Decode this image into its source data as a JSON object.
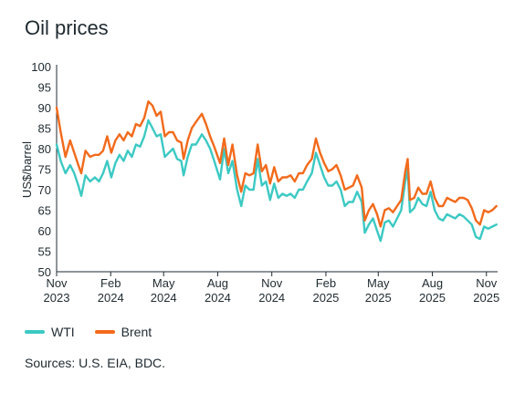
{
  "title": "Oil prices",
  "source": "Sources: U.S. EIA, BDC.",
  "colors": {
    "wti": "#3cc9c3",
    "brent": "#f26a1b",
    "axis": "#1f2a30"
  },
  "chart_data": {
    "type": "line",
    "title": "Oil prices",
    "ylabel": "US$/barrel",
    "ylim": [
      50,
      100
    ],
    "yticks": [
      50,
      55,
      60,
      65,
      70,
      75,
      80,
      85,
      90,
      95,
      100
    ],
    "xlim": [
      "2023-11-01",
      "2025-11-20"
    ],
    "xticks": [
      {
        "x": "2023-11-01",
        "label1": "Nov",
        "label2": "2023"
      },
      {
        "x": "2024-02-01",
        "label1": "Feb",
        "label2": "2024"
      },
      {
        "x": "2024-05-01",
        "label1": "May",
        "label2": "2024"
      },
      {
        "x": "2024-08-01",
        "label1": "Aug",
        "label2": "2024"
      },
      {
        "x": "2024-11-01",
        "label1": "Nov",
        "label2": "2024"
      },
      {
        "x": "2025-02-01",
        "label1": "Feb",
        "label2": "2025"
      },
      {
        "x": "2025-05-01",
        "label1": "May",
        "label2": "2025"
      },
      {
        "x": "2025-08-01",
        "label1": "Aug",
        "label2": "2025"
      },
      {
        "x": "2025-11-01",
        "label1": "Nov",
        "label2": "2025"
      }
    ],
    "legend": "bottom-left",
    "series": [
      {
        "name": "WTI",
        "color": "#3cc9c3",
        "points": [
          [
            "2023-11-01",
            81
          ],
          [
            "2023-11-08",
            77
          ],
          [
            "2023-11-16",
            74
          ],
          [
            "2023-11-24",
            76
          ],
          [
            "2023-12-01",
            74
          ],
          [
            "2023-12-08",
            71
          ],
          [
            "2023-12-13",
            68.5
          ],
          [
            "2023-12-20",
            73.5
          ],
          [
            "2023-12-28",
            72
          ],
          [
            "2024-01-05",
            73
          ],
          [
            "2024-01-12",
            72
          ],
          [
            "2024-01-19",
            74
          ],
          [
            "2024-01-26",
            77
          ],
          [
            "2024-02-02",
            73
          ],
          [
            "2024-02-09",
            76.5
          ],
          [
            "2024-02-16",
            78.5
          ],
          [
            "2024-02-23",
            77
          ],
          [
            "2024-03-01",
            79.5
          ],
          [
            "2024-03-08",
            78
          ],
          [
            "2024-03-15",
            81
          ],
          [
            "2024-03-22",
            80.5
          ],
          [
            "2024-03-29",
            83
          ],
          [
            "2024-04-05",
            86.9
          ],
          [
            "2024-04-12",
            85
          ],
          [
            "2024-04-19",
            83
          ],
          [
            "2024-04-26",
            83.5
          ],
          [
            "2024-05-03",
            78
          ],
          [
            "2024-05-10",
            79
          ],
          [
            "2024-05-17",
            80
          ],
          [
            "2024-05-24",
            77.5
          ],
          [
            "2024-05-31",
            77
          ],
          [
            "2024-06-04",
            73.5
          ],
          [
            "2024-06-11",
            78
          ],
          [
            "2024-06-18",
            81
          ],
          [
            "2024-06-25",
            81
          ],
          [
            "2024-07-05",
            83.5
          ],
          [
            "2024-07-12",
            82
          ],
          [
            "2024-07-19",
            80
          ],
          [
            "2024-07-26",
            77
          ],
          [
            "2024-08-05",
            72.5
          ],
          [
            "2024-08-12",
            80
          ],
          [
            "2024-08-19",
            74
          ],
          [
            "2024-08-26",
            77
          ],
          [
            "2024-09-03",
            70
          ],
          [
            "2024-09-10",
            66
          ],
          [
            "2024-09-17",
            71
          ],
          [
            "2024-09-24",
            70
          ],
          [
            "2024-10-01",
            70
          ],
          [
            "2024-10-08",
            77.5
          ],
          [
            "2024-10-15",
            71
          ],
          [
            "2024-10-22",
            72
          ],
          [
            "2024-10-29",
            67.5
          ],
          [
            "2024-11-05",
            71.5
          ],
          [
            "2024-11-12",
            68
          ],
          [
            "2024-11-19",
            69
          ],
          [
            "2024-11-26",
            68.5
          ],
          [
            "2024-12-03",
            69
          ],
          [
            "2024-12-10",
            68
          ],
          [
            "2024-12-17",
            70
          ],
          [
            "2024-12-24",
            70
          ],
          [
            "2024-12-31",
            72
          ],
          [
            "2025-01-08",
            74
          ],
          [
            "2025-01-15",
            79
          ],
          [
            "2025-01-22",
            76
          ],
          [
            "2025-01-29",
            73
          ],
          [
            "2025-02-05",
            71
          ],
          [
            "2025-02-12",
            71
          ],
          [
            "2025-02-19",
            72
          ],
          [
            "2025-02-26",
            70
          ],
          [
            "2025-03-05",
            66
          ],
          [
            "2025-03-12",
            67
          ],
          [
            "2025-03-19",
            67
          ],
          [
            "2025-03-26",
            69.5
          ],
          [
            "2025-04-03",
            67
          ],
          [
            "2025-04-08",
            59.5
          ],
          [
            "2025-04-15",
            61.5
          ],
          [
            "2025-04-22",
            63
          ],
          [
            "2025-04-29",
            60
          ],
          [
            "2025-05-05",
            57.5
          ],
          [
            "2025-05-12",
            62
          ],
          [
            "2025-05-19",
            62.5
          ],
          [
            "2025-05-26",
            61
          ],
          [
            "2025-06-02",
            63
          ],
          [
            "2025-06-09",
            65
          ],
          [
            "2025-06-16",
            72
          ],
          [
            "2025-06-20",
            75
          ],
          [
            "2025-06-24",
            64.5
          ],
          [
            "2025-07-01",
            65.5
          ],
          [
            "2025-07-08",
            68
          ],
          [
            "2025-07-15",
            66.5
          ],
          [
            "2025-07-22",
            66
          ],
          [
            "2025-07-29",
            69.5
          ],
          [
            "2025-08-05",
            65
          ],
          [
            "2025-08-12",
            63
          ],
          [
            "2025-08-19",
            62.5
          ],
          [
            "2025-08-26",
            64
          ],
          [
            "2025-09-02",
            63.5
          ],
          [
            "2025-09-09",
            63
          ],
          [
            "2025-09-16",
            64
          ],
          [
            "2025-09-23",
            63.5
          ],
          [
            "2025-09-30",
            62.5
          ],
          [
            "2025-10-07",
            61.5
          ],
          [
            "2025-10-14",
            58.5
          ],
          [
            "2025-10-21",
            58
          ],
          [
            "2025-10-28",
            61
          ],
          [
            "2025-11-04",
            60.5
          ],
          [
            "2025-11-11",
            61
          ],
          [
            "2025-11-18",
            61.5
          ]
        ]
      },
      {
        "name": "Brent",
        "color": "#f26a1b",
        "points": [
          [
            "2023-11-01",
            90
          ],
          [
            "2023-11-08",
            84
          ],
          [
            "2023-11-16",
            78
          ],
          [
            "2023-11-24",
            82
          ],
          [
            "2023-12-01",
            79
          ],
          [
            "2023-12-08",
            76
          ],
          [
            "2023-12-13",
            74
          ],
          [
            "2023-12-20",
            79.5
          ],
          [
            "2023-12-28",
            78
          ],
          [
            "2024-01-05",
            78.5
          ],
          [
            "2024-01-12",
            78.5
          ],
          [
            "2024-01-19",
            79.5
          ],
          [
            "2024-01-26",
            83
          ],
          [
            "2024-02-02",
            79
          ],
          [
            "2024-02-09",
            82
          ],
          [
            "2024-02-16",
            83.5
          ],
          [
            "2024-02-23",
            82
          ],
          [
            "2024-03-01",
            84
          ],
          [
            "2024-03-08",
            83
          ],
          [
            "2024-03-15",
            86
          ],
          [
            "2024-03-22",
            85.5
          ],
          [
            "2024-03-29",
            87.5
          ],
          [
            "2024-04-05",
            91.5
          ],
          [
            "2024-04-12",
            90.5
          ],
          [
            "2024-04-19",
            88
          ],
          [
            "2024-04-26",
            89
          ],
          [
            "2024-05-03",
            83
          ],
          [
            "2024-05-10",
            84
          ],
          [
            "2024-05-17",
            84
          ],
          [
            "2024-05-24",
            82
          ],
          [
            "2024-05-31",
            81.5
          ],
          [
            "2024-06-04",
            77.5
          ],
          [
            "2024-06-11",
            82
          ],
          [
            "2024-06-18",
            85
          ],
          [
            "2024-06-25",
            86.5
          ],
          [
            "2024-07-05",
            88.5
          ],
          [
            "2024-07-12",
            86
          ],
          [
            "2024-07-19",
            83
          ],
          [
            "2024-07-26",
            80.5
          ],
          [
            "2024-08-05",
            76.5
          ],
          [
            "2024-08-12",
            82.5
          ],
          [
            "2024-08-19",
            76
          ],
          [
            "2024-08-26",
            81
          ],
          [
            "2024-09-03",
            73.5
          ],
          [
            "2024-09-10",
            69.5
          ],
          [
            "2024-09-17",
            74
          ],
          [
            "2024-09-24",
            73.5
          ],
          [
            "2024-10-01",
            74
          ],
          [
            "2024-10-08",
            81
          ],
          [
            "2024-10-15",
            74.5
          ],
          [
            "2024-10-22",
            76
          ],
          [
            "2024-10-29",
            71.5
          ],
          [
            "2024-11-05",
            75.5
          ],
          [
            "2024-11-12",
            72
          ],
          [
            "2024-11-19",
            73
          ],
          [
            "2024-11-26",
            73
          ],
          [
            "2024-12-03",
            73.5
          ],
          [
            "2024-12-10",
            72
          ],
          [
            "2024-12-17",
            74
          ],
          [
            "2024-12-24",
            74
          ],
          [
            "2024-12-31",
            76
          ],
          [
            "2025-01-08",
            77.5
          ],
          [
            "2025-01-15",
            82.5
          ],
          [
            "2025-01-22",
            79
          ],
          [
            "2025-01-29",
            76.5
          ],
          [
            "2025-02-05",
            74.5
          ],
          [
            "2025-02-12",
            75
          ],
          [
            "2025-02-19",
            76
          ],
          [
            "2025-02-26",
            73.5
          ],
          [
            "2025-03-05",
            70
          ],
          [
            "2025-03-12",
            70.5
          ],
          [
            "2025-03-19",
            71
          ],
          [
            "2025-03-26",
            73.5
          ],
          [
            "2025-04-03",
            70.5
          ],
          [
            "2025-04-08",
            62.5
          ],
          [
            "2025-04-15",
            65
          ],
          [
            "2025-04-22",
            66.5
          ],
          [
            "2025-04-29",
            64
          ],
          [
            "2025-05-05",
            61
          ],
          [
            "2025-05-12",
            65
          ],
          [
            "2025-05-19",
            65.5
          ],
          [
            "2025-05-26",
            64.5
          ],
          [
            "2025-06-02",
            66
          ],
          [
            "2025-06-09",
            67.5
          ],
          [
            "2025-06-16",
            74.5
          ],
          [
            "2025-06-20",
            77.5
          ],
          [
            "2025-06-24",
            67.5
          ],
          [
            "2025-07-01",
            68
          ],
          [
            "2025-07-08",
            70.5
          ],
          [
            "2025-07-15",
            69
          ],
          [
            "2025-07-22",
            69
          ],
          [
            "2025-07-29",
            72
          ],
          [
            "2025-08-05",
            68
          ],
          [
            "2025-08-12",
            66
          ],
          [
            "2025-08-19",
            66
          ],
          [
            "2025-08-26",
            68
          ],
          [
            "2025-09-02",
            67.5
          ],
          [
            "2025-09-09",
            67
          ],
          [
            "2025-09-16",
            68
          ],
          [
            "2025-09-23",
            68
          ],
          [
            "2025-09-30",
            67.5
          ],
          [
            "2025-10-07",
            65.5
          ],
          [
            "2025-10-14",
            62.5
          ],
          [
            "2025-10-21",
            61.5
          ],
          [
            "2025-10-28",
            65
          ],
          [
            "2025-11-04",
            64.5
          ],
          [
            "2025-11-11",
            65
          ],
          [
            "2025-11-18",
            66
          ]
        ]
      }
    ]
  }
}
